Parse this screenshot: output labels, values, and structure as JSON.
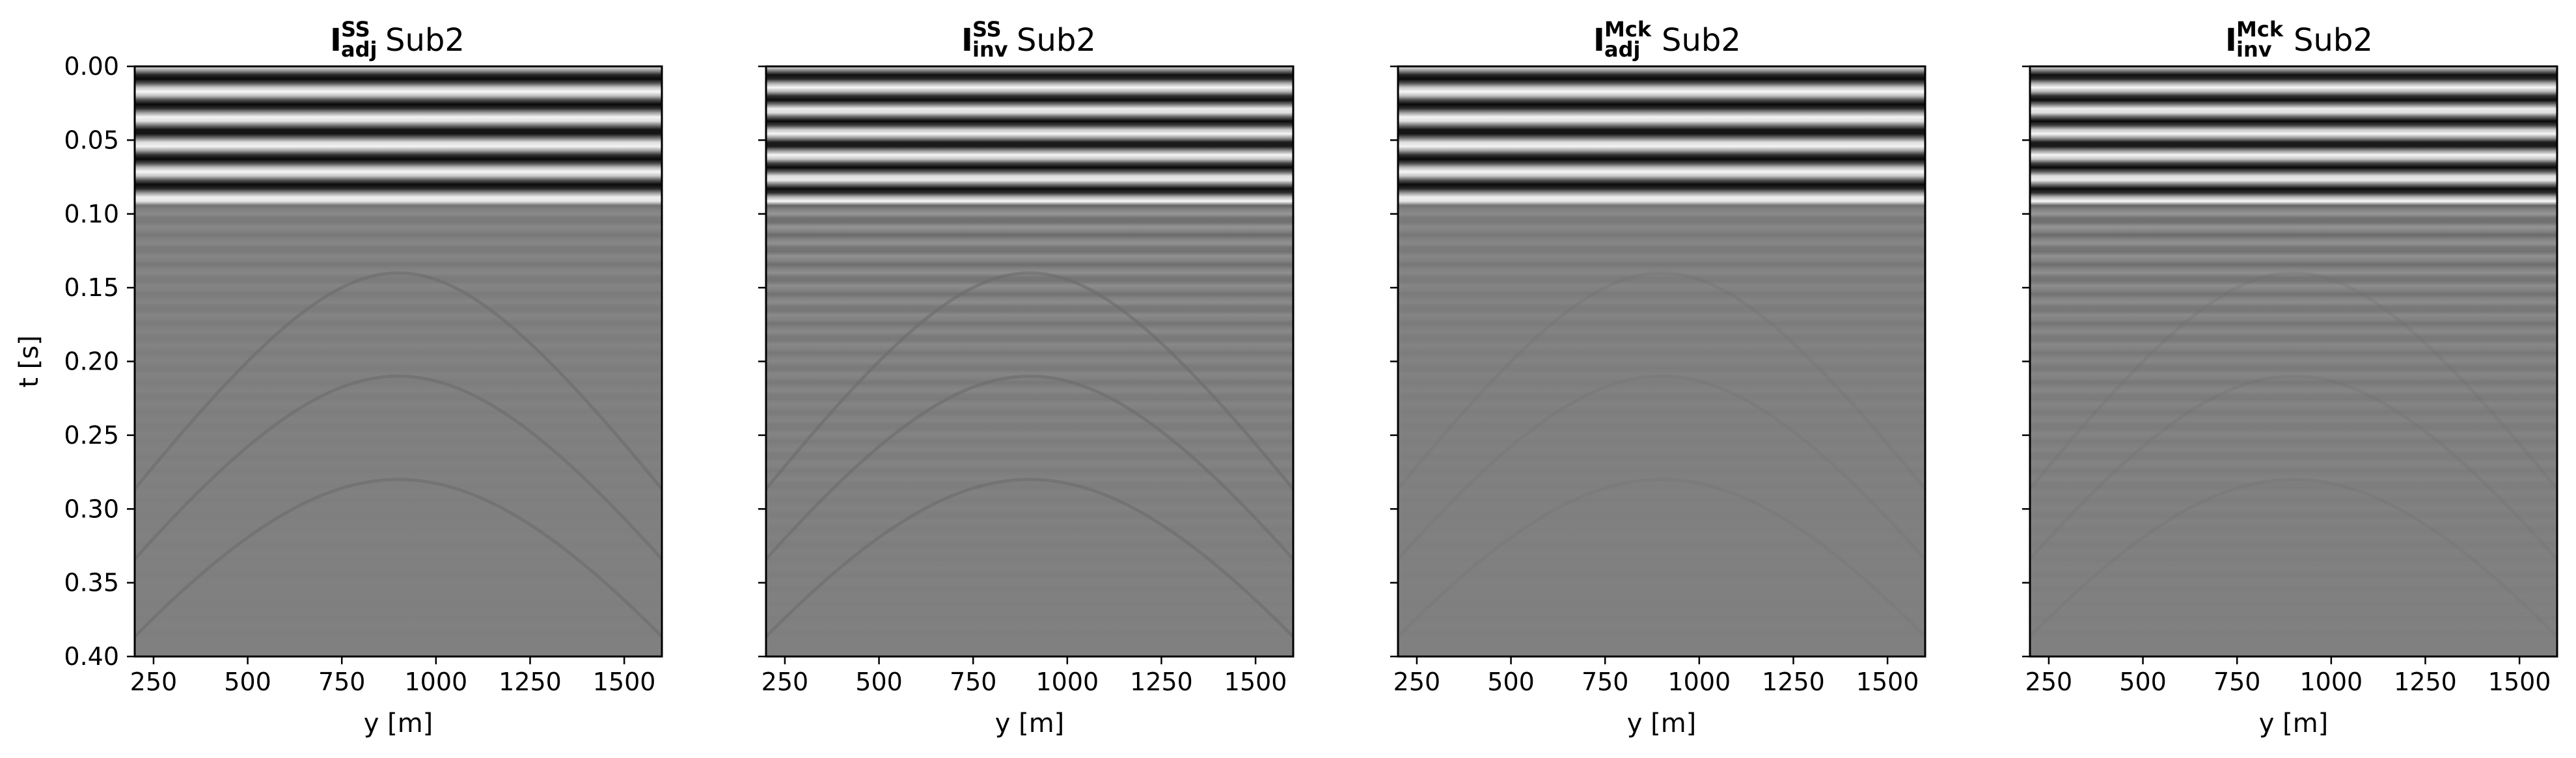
{
  "chart_data": [
    {
      "type": "heatmap",
      "title": {
        "base": "I",
        "sup": "SS",
        "sub": "adj",
        "rest": "Sub2"
      },
      "xlabel": "y [m]",
      "ylabel": "t [s]",
      "xlim": [
        200,
        1600
      ],
      "ylim": [
        0.4,
        0.0
      ],
      "xticks": [
        "250",
        "500",
        "750",
        "1000",
        "1250",
        "1500"
      ],
      "xtick_values": [
        250,
        500,
        750,
        1000,
        1250,
        1500
      ],
      "yticks": [
        "0.00",
        "0.05",
        "0.10",
        "0.15",
        "0.20",
        "0.25",
        "0.30",
        "0.35",
        "0.40"
      ],
      "ytick_values": [
        0.0,
        0.05,
        0.1,
        0.15,
        0.2,
        0.25,
        0.3,
        0.35,
        0.4
      ],
      "colormap": "gray",
      "style": {
        "strong_bands": 2,
        "diffractions": "strong",
        "layered_detail": "low"
      }
    },
    {
      "type": "heatmap",
      "title": {
        "base": "I",
        "sup": "SS",
        "sub": "inv",
        "rest": "Sub2"
      },
      "xlabel": "y [m]",
      "ylabel": "",
      "xlim": [
        200,
        1600
      ],
      "ylim": [
        0.4,
        0.0
      ],
      "xticks": [
        "250",
        "500",
        "750",
        "1000",
        "1250",
        "1500"
      ],
      "xtick_values": [
        250,
        500,
        750,
        1000,
        1250,
        1500
      ],
      "yticks": [],
      "ytick_values": [
        0.0,
        0.05,
        0.1,
        0.15,
        0.2,
        0.25,
        0.3,
        0.35,
        0.4
      ],
      "colormap": "gray",
      "style": {
        "strong_bands": 3,
        "diffractions": "strong",
        "layered_detail": "high"
      }
    },
    {
      "type": "heatmap",
      "title": {
        "base": "I",
        "sup": "Mck",
        "sub": "adj",
        "rest": "Sub2"
      },
      "xlabel": "y [m]",
      "ylabel": "",
      "xlim": [
        200,
        1600
      ],
      "ylim": [
        0.4,
        0.0
      ],
      "xticks": [
        "250",
        "500",
        "750",
        "1000",
        "1250",
        "1500"
      ],
      "xtick_values": [
        250,
        500,
        750,
        1000,
        1250,
        1500
      ],
      "yticks": [],
      "ytick_values": [
        0.0,
        0.05,
        0.1,
        0.15,
        0.2,
        0.25,
        0.3,
        0.35,
        0.4
      ],
      "colormap": "gray",
      "style": {
        "strong_bands": 2,
        "diffractions": "weak",
        "layered_detail": "low"
      }
    },
    {
      "type": "heatmap",
      "title": {
        "base": "I",
        "sup": "Mck",
        "sub": "inv",
        "rest": "Sub2"
      },
      "xlabel": "y [m]",
      "ylabel": "",
      "xlim": [
        200,
        1600
      ],
      "ylim": [
        0.4,
        0.0
      ],
      "xticks": [
        "250",
        "500",
        "750",
        "1000",
        "1250",
        "1500"
      ],
      "xtick_values": [
        250,
        500,
        750,
        1000,
        1250,
        1500
      ],
      "yticks": [],
      "ytick_values": [
        0.0,
        0.05,
        0.1,
        0.15,
        0.2,
        0.25,
        0.3,
        0.35,
        0.4
      ],
      "colormap": "gray",
      "style": {
        "strong_bands": 3,
        "diffractions": "weak",
        "layered_detail": "high"
      }
    }
  ]
}
